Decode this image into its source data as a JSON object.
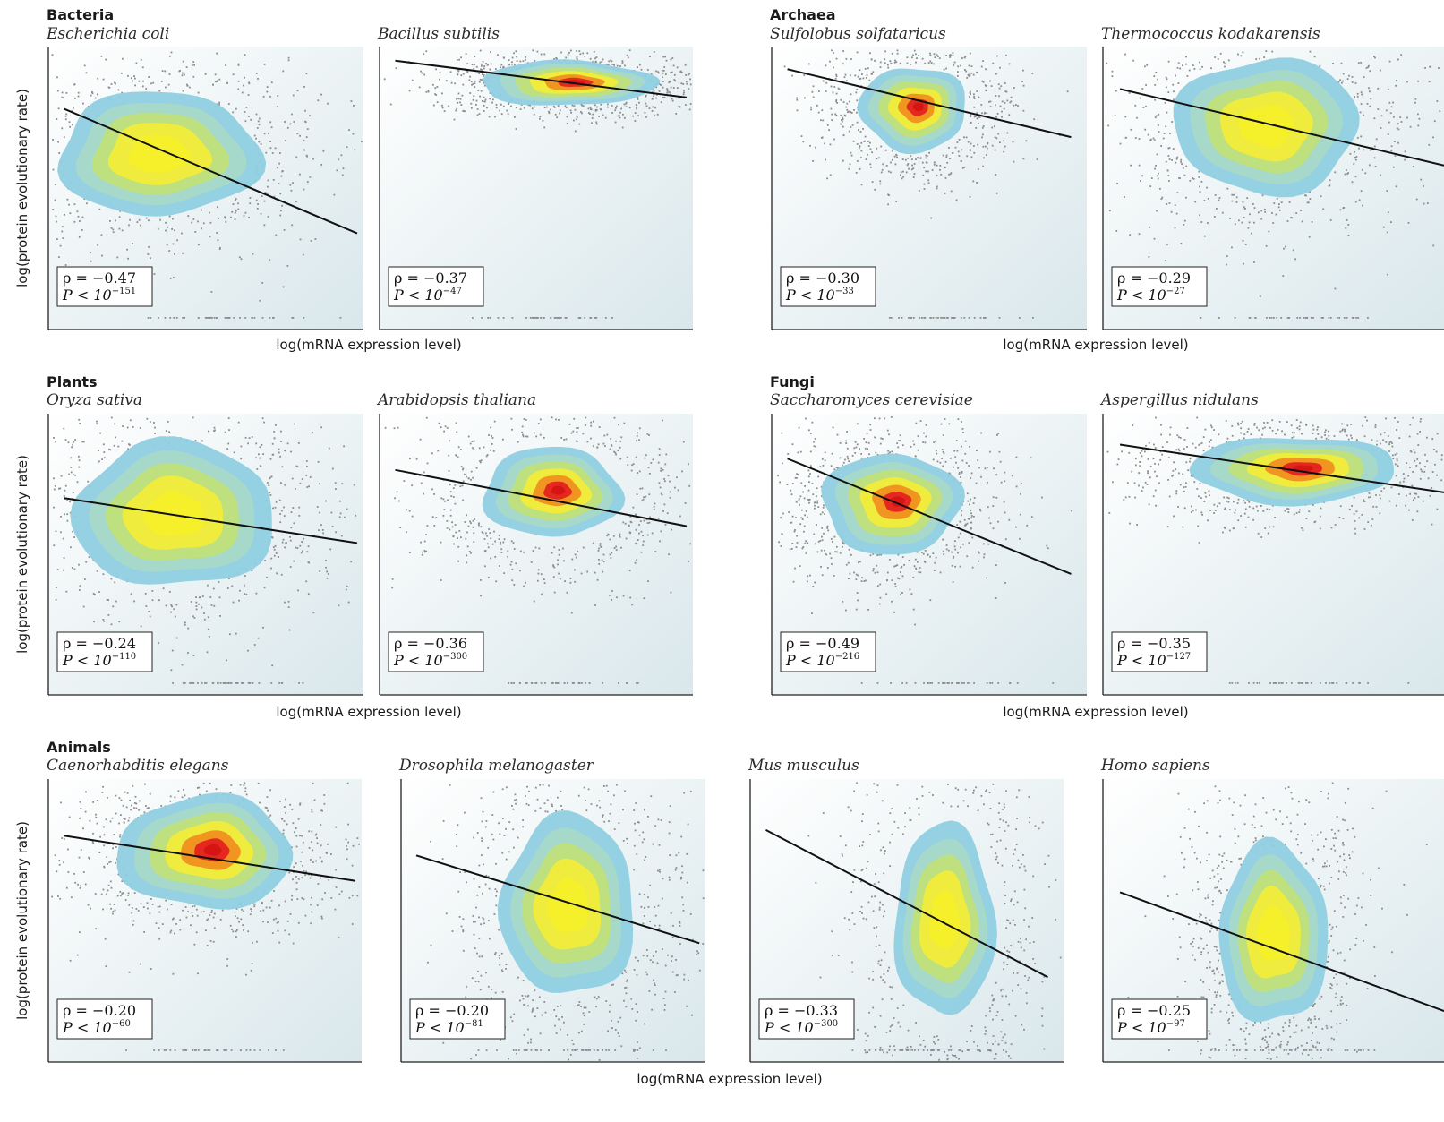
{
  "colors": {
    "panel_bg_light": "#ffffff",
    "panel_bg_dark": "#d8e6ea",
    "density_low": "#8fcfe0",
    "density_mid": "#bfe07a",
    "density_high": "#f2ec3a",
    "density_peak": "#f09020",
    "density_max": "#e32220",
    "points": "#8c8c8c",
    "fit_line": "#111111"
  },
  "chart_data": {
    "type": "scatter",
    "xlabel": "log(mRNA expression level)",
    "ylabel": "log(protein evolutionary rate)",
    "groups": [
      {
        "name": "Bacteria",
        "panels": [
          {
            "species": "Escherichia coli",
            "rho": "ρ = −0.47",
            "p_prefix": "P < 10",
            "p_exp": "−151",
            "fit": [
              [
                0.05,
                0.78
              ],
              [
                0.98,
                0.34
              ]
            ],
            "density": {
              "cx": 0.35,
              "cy": 0.62,
              "rx": 0.32,
              "ry": 0.22,
              "peak": 0.55
            },
            "point_spread": 1.3
          },
          {
            "species": "Bacillus subtilis",
            "rho": "ρ = −0.37",
            "p_prefix": "P < 10",
            "p_exp": "−47",
            "fit": [
              [
                0.05,
                0.95
              ],
              [
                0.98,
                0.82
              ]
            ],
            "density": {
              "cx": 0.6,
              "cy": 0.87,
              "rx": 0.28,
              "ry": 0.08,
              "peak": 1.0
            },
            "point_spread": 1.2
          }
        ]
      },
      {
        "name": "Archaea",
        "panels": [
          {
            "species": "Sulfolobus solfataricus",
            "rho": "ρ = −0.30",
            "p_prefix": "P < 10",
            "p_exp": "−33",
            "fit": [
              [
                0.05,
                0.92
              ],
              [
                0.95,
                0.68
              ]
            ],
            "density": {
              "cx": 0.45,
              "cy": 0.78,
              "rx": 0.17,
              "ry": 0.15,
              "peak": 0.95
            },
            "point_spread": 1.4
          },
          {
            "species": "Thermococcus kodakarensis",
            "rho": "ρ = −0.29",
            "p_prefix": "P < 10",
            "p_exp": "−27",
            "fit": [
              [
                0.05,
                0.85
              ],
              [
                1.0,
                0.58
              ]
            ],
            "density": {
              "cx": 0.48,
              "cy": 0.72,
              "rx": 0.27,
              "ry": 0.24,
              "peak": 0.55
            },
            "point_spread": 1.3
          }
        ]
      },
      {
        "name": "Plants",
        "panels": [
          {
            "species": "Oryza sativa",
            "rho": "ρ = −0.24",
            "p_prefix": "P < 10",
            "p_exp": "−110",
            "fit": [
              [
                0.05,
                0.7
              ],
              [
                0.98,
                0.54
              ]
            ],
            "density": {
              "cx": 0.4,
              "cy": 0.64,
              "rx": 0.32,
              "ry": 0.26,
              "peak": 0.55
            },
            "point_spread": 1.3
          },
          {
            "species": "Arabidopsis thaliana",
            "rho": "ρ = −0.36",
            "p_prefix": "P < 10",
            "p_exp": "−300",
            "fit": [
              [
                0.05,
                0.8
              ],
              [
                0.98,
                0.6
              ]
            ],
            "density": {
              "cx": 0.55,
              "cy": 0.72,
              "rx": 0.22,
              "ry": 0.16,
              "peak": 0.95
            },
            "point_spread": 1.6
          }
        ]
      },
      {
        "name": "Fungi",
        "panels": [
          {
            "species": "Saccharomyces cerevisiae",
            "rho": "ρ = −0.49",
            "p_prefix": "P < 10",
            "p_exp": "−216",
            "fit": [
              [
                0.05,
                0.84
              ],
              [
                0.95,
                0.43
              ]
            ],
            "density": {
              "cx": 0.38,
              "cy": 0.68,
              "rx": 0.22,
              "ry": 0.18,
              "peak": 0.95
            },
            "point_spread": 1.3
          },
          {
            "species": "Aspergillus nidulans",
            "rho": "ρ = −0.35",
            "p_prefix": "P < 10",
            "p_exp": "−127",
            "fit": [
              [
                0.05,
                0.89
              ],
              [
                1.0,
                0.72
              ]
            ],
            "density": {
              "cx": 0.56,
              "cy": 0.8,
              "rx": 0.3,
              "ry": 0.12,
              "peak": 0.95
            },
            "point_spread": 1.3
          }
        ]
      },
      {
        "name": "Animals",
        "panels": [
          {
            "species": "Caenorhabditis elegans",
            "rho": "ρ = −0.20",
            "p_prefix": "P < 10",
            "p_exp": "−60",
            "fit": [
              [
                0.05,
                0.8
              ],
              [
                0.98,
                0.64
              ]
            ],
            "density": {
              "cx": 0.5,
              "cy": 0.74,
              "rx": 0.28,
              "ry": 0.2,
              "peak": 0.95
            },
            "point_spread": 1.25
          },
          {
            "species": "Drosophila melanogaster",
            "rho": "ρ = −0.20",
            "p_prefix": "P < 10",
            "p_exp": "−81",
            "fit": [
              [
                0.05,
                0.73
              ],
              [
                0.98,
                0.42
              ]
            ],
            "density": {
              "cx": 0.55,
              "cy": 0.55,
              "rx": 0.22,
              "ry": 0.32,
              "peak": 0.55
            },
            "point_spread": 1.4
          },
          {
            "species": "Mus musculus",
            "rho": "ρ = −0.33",
            "p_prefix": "P < 10",
            "p_exp": "−300",
            "fit": [
              [
                0.05,
                0.82
              ],
              [
                0.95,
                0.3
              ]
            ],
            "density": {
              "cx": 0.62,
              "cy": 0.5,
              "rx": 0.16,
              "ry": 0.34,
              "peak": 0.55
            },
            "point_spread": 1.6
          },
          {
            "species": "Homo sapiens",
            "rho": "ρ = −0.25",
            "p_prefix": "P < 10",
            "p_exp": "−97",
            "fit": [
              [
                0.05,
                0.6
              ],
              [
                1.0,
                0.18
              ]
            ],
            "density": {
              "cx": 0.5,
              "cy": 0.45,
              "rx": 0.16,
              "ry": 0.32,
              "peak": 0.55
            },
            "point_spread": 1.3
          }
        ]
      }
    ]
  }
}
